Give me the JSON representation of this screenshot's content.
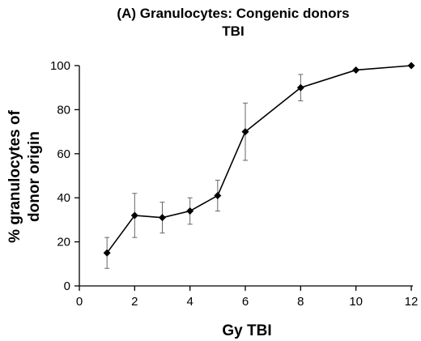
{
  "chart_data": {
    "type": "line",
    "title_line1": "(A) Granulocytes: Congenic donors",
    "title_line2": "TBI",
    "xlabel": "Gy TBI",
    "ylabel_line1": "% granulocytes of",
    "ylabel_line2": "donor origin",
    "xlim": [
      0,
      12
    ],
    "ylim": [
      0,
      100
    ],
    "x_ticks": [
      0,
      2,
      4,
      6,
      8,
      10,
      12
    ],
    "y_ticks": [
      0,
      20,
      40,
      60,
      80,
      100
    ],
    "grid": false,
    "marker": "diamond",
    "series": [
      {
        "x": [
          1,
          2,
          3,
          4,
          5,
          6,
          8,
          10,
          12
        ],
        "y": [
          15,
          32,
          31,
          34,
          41,
          70,
          90,
          98,
          100
        ],
        "err": [
          7,
          10,
          7,
          6,
          7,
          13,
          6,
          0,
          0
        ]
      }
    ]
  }
}
